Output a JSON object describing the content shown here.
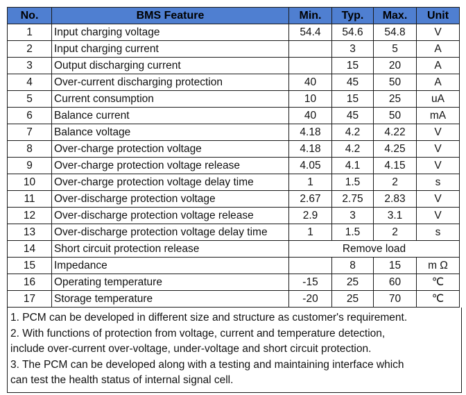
{
  "header": {
    "no": "No.",
    "feature": "BMS Feature",
    "min": "Min.",
    "typ": "Typ.",
    "max": "Max.",
    "unit": "Unit"
  },
  "rows": [
    {
      "no": "1",
      "feature": "Input charging voltage",
      "min": "54.4",
      "typ": "54.6",
      "max": "54.8",
      "unit": "V"
    },
    {
      "no": "2",
      "feature": "Input charging current",
      "min": "",
      "typ": "3",
      "max": "5",
      "unit": "A"
    },
    {
      "no": "3",
      "feature": "Output discharging current",
      "min": "",
      "typ": "15",
      "max": "20",
      "unit": "A"
    },
    {
      "no": "4",
      "feature": "Over-current discharging protection",
      "min": "40",
      "typ": "45",
      "max": "50",
      "unit": "A"
    },
    {
      "no": "5",
      "feature": "Current consumption",
      "min": "10",
      "typ": "15",
      "max": "25",
      "unit": "uA"
    },
    {
      "no": "6",
      "feature": "Balance current",
      "min": "40",
      "typ": "45",
      "max": "50",
      "unit": "mA"
    },
    {
      "no": "7",
      "feature": "Balance voltage",
      "min": "4.18",
      "typ": "4.2",
      "max": "4.22",
      "unit": "V"
    },
    {
      "no": "8",
      "feature": "Over-charge protection voltage",
      "min": "4.18",
      "typ": "4.2",
      "max": "4.25",
      "unit": "V"
    },
    {
      "no": "9",
      "feature": "Over-charge protection voltage release",
      "min": "4.05",
      "typ": "4.1",
      "max": "4.15",
      "unit": "V"
    },
    {
      "no": "10",
      "feature": "Over-charge protection voltage delay time",
      "min": "1",
      "typ": "1.5",
      "max": "2",
      "unit": "s"
    },
    {
      "no": "11",
      "feature": "Over-discharge protection voltage",
      "min": "2.67",
      "typ": "2.75",
      "max": "2.83",
      "unit": "V"
    },
    {
      "no": "12",
      "feature": "Over-discharge protection voltage release",
      "min": "2.9",
      "typ": "3",
      "max": "3.1",
      "unit": "V"
    },
    {
      "no": "13",
      "feature": "Over-discharge protection voltage delay time",
      "min": "1",
      "typ": "1.5",
      "max": "2",
      "unit": "s"
    },
    {
      "no": "14",
      "feature": "Short circuit protection release",
      "merged": "Remove load"
    },
    {
      "no": "15",
      "feature": "Impedance",
      "min": "",
      "typ": "8",
      "max": "15",
      "unit": "m Ω"
    },
    {
      "no": "16",
      "feature": "Operating temperature",
      "min": "-15",
      "typ": "25",
      "max": "60",
      "unit": "℃"
    },
    {
      "no": "17",
      "feature": "Storage temperature",
      "min": "-20",
      "typ": "25",
      "max": "70",
      "unit": "℃"
    }
  ],
  "notes": [
    "1. PCM can be developed in different size and structure as customer's requirement.",
    "2. With functions of protection from voltage, current and temperature detection,",
    "include over-current over-voltage, under-voltage and short circuit protection.",
    "3. The PCM can be developed along with a testing and maintaining interface which",
    "can test the health status of internal signal cell."
  ]
}
